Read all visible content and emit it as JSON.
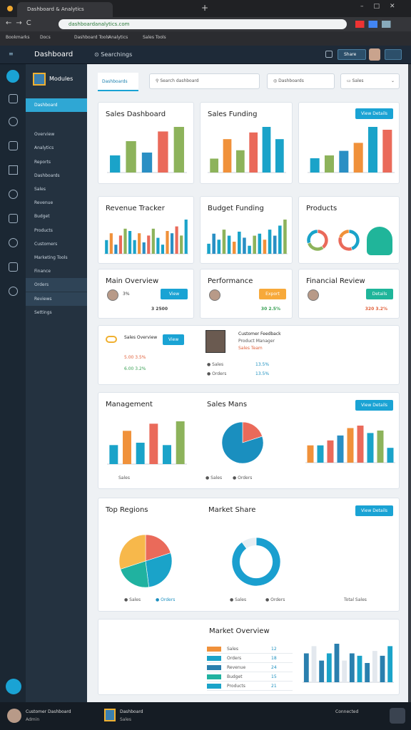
{
  "browser": {
    "tab": "Dashboard & Analytics",
    "url": "dashboardanalytics.com",
    "bookmarks": [
      "Bookmarks",
      "Docs",
      "Dashboard Tools",
      "Analytics",
      "Sales Tools"
    ]
  },
  "header": {
    "brand": "Dashboard",
    "search": "Searchings",
    "button": "Share"
  },
  "sidebar": {
    "title": "Modules",
    "items": [
      "Dashboard",
      "Overview",
      "Analytics",
      "Reports",
      "Dashboards",
      "Sales",
      "Revenue",
      "Budget",
      "Products",
      "Customers",
      "Marketing Tools",
      "Finance",
      "Orders",
      "Reviews",
      "Settings"
    ]
  },
  "toolbar": {
    "tab": "Dashboards",
    "search": "Search dashboard",
    "select1": "Dashboards",
    "select2": "Sales"
  },
  "charts": [
    {
      "type": "bar",
      "title": "Sales Dashboard",
      "values": [
        30,
        55,
        35,
        72,
        80
      ],
      "colors": [
        "#1aa3c9",
        "#8db35b",
        "#2a8fc4",
        "#ea6a5a",
        "#8db35b"
      ]
    },
    {
      "type": "bar",
      "title": "Sales Funding",
      "values": [
        25,
        60,
        40,
        72,
        82,
        60
      ],
      "colors": [
        "#8db35b",
        "#f0913a",
        "#8db35b",
        "#ea6a5a",
        "#1aa3c9",
        "#1aa3c9"
      ]
    },
    {
      "type": "bar",
      "button": "View Details",
      "values": [
        25,
        30,
        38,
        52,
        80,
        75
      ],
      "colors": [
        "#1aa3c9",
        "#8db35b",
        "#2a8fc4",
        "#f0913a",
        "#1aa3c9",
        "#ea6a5a"
      ]
    },
    {
      "type": "bar",
      "title": "Revenue Tracker",
      "values": [
        30,
        45,
        20,
        40,
        55,
        50,
        30,
        45,
        25,
        40,
        55,
        35,
        20,
        50,
        45,
        60,
        40,
        75
      ],
      "colors": [
        "#1aa3c9",
        "#f0913a",
        "#2a8fc4",
        "#ea6a5a",
        "#8db35b",
        "#1aa3c9"
      ]
    },
    {
      "type": "bar",
      "title": "Budget Funding",
      "values": [
        25,
        50,
        35,
        60,
        45,
        30,
        55,
        40,
        20,
        45,
        50,
        35,
        60,
        45,
        70,
        85
      ],
      "colors": [
        "#1aa3c9",
        "#2a8fc4",
        "#1aa3c9",
        "#8db35b",
        "#1aa3c9",
        "#f0913a"
      ]
    },
    {
      "type": "donut",
      "title": "Products",
      "values": [
        40,
        30,
        30
      ],
      "colors": [
        "#ea6a5a",
        "#8db35b",
        "#1aa3c9"
      ]
    },
    {
      "type": "donut",
      "values": [
        45,
        35,
        20
      ],
      "colors": [
        "#1aa3c9",
        "#ea6a5a",
        "#f0913a"
      ]
    },
    {
      "type": "bar",
      "title": "Management",
      "values": [
        40,
        70,
        45,
        85,
        40,
        90
      ],
      "colors": [
        "#1aa3c9",
        "#f0913a",
        "#1aa3c9",
        "#ea6a5a",
        "#1aa3c9",
        "#8db35b"
      ]
    },
    {
      "type": "pie",
      "title": "Sales Mans",
      "values": [
        20,
        80
      ],
      "colors": [
        "#ea6a5a",
        "#1a8fbf"
      ]
    },
    {
      "type": "bar",
      "button": "View Details",
      "values": [
        35,
        35,
        45,
        55,
        70,
        75,
        60,
        65,
        30
      ],
      "colors": [
        "#f0913a",
        "#1aa3c9",
        "#ea6a5a",
        "#2a8fc4",
        "#f0913a",
        "#ea6a5a",
        "#1aa3c9",
        "#8db35b",
        "#1aa3c9"
      ]
    },
    {
      "type": "pie",
      "title": "Top Regions",
      "values": [
        20,
        28,
        22,
        30
      ],
      "colors": [
        "#ea6a5a",
        "#1aa3c9",
        "#20b2a0",
        "#f7b84b"
      ]
    },
    {
      "type": "donut",
      "title": "Market Share",
      "button": "View Details",
      "values": [
        90,
        10
      ],
      "colors": [
        "#1a9fcf",
        "#e7eef3"
      ]
    },
    {
      "type": "bar",
      "title": "Market Overview",
      "values": [
        60,
        75,
        45,
        60,
        80,
        45,
        60,
        55,
        40,
        65,
        55,
        75
      ],
      "colors": [
        "#2a7fae",
        "#e3e8ee",
        "#2a7fae",
        "#1aa3c9"
      ]
    }
  ],
  "stats": [
    {
      "title": "Main Overview",
      "change": "3%",
      "amount": "3 2500",
      "button": "View"
    },
    {
      "title": "Performance",
      "amount": "30 2.5%",
      "button": "Export"
    },
    {
      "title": "Financial Review",
      "amount": "320 3.2%",
      "button": "Details"
    }
  ],
  "summary": {
    "title": "Sales Overview",
    "button": "View",
    "lines": [
      "5.00 3.5%",
      "6.00 3.2%"
    ],
    "person": "Customer Feedback",
    "role": "Product Manager",
    "note": "Sales Team",
    "items": [
      {
        "label": "Sales",
        "value": "13.5%"
      },
      {
        "label": "Orders",
        "value": "13.5%"
      }
    ]
  },
  "legends": {
    "sales": "Sales",
    "orders": "Orders",
    "total": "Total Sales"
  },
  "table": {
    "rows": [
      [
        "Sales",
        "12"
      ],
      [
        "Orders",
        "18"
      ],
      [
        "Revenue",
        "24"
      ],
      [
        "Budget",
        "15"
      ],
      [
        "Products",
        "21"
      ]
    ]
  },
  "footer": {
    "user": "Customer Dashboard",
    "role": "Admin",
    "project": "Dashboard",
    "sub": "Sales",
    "status": "Connected"
  }
}
